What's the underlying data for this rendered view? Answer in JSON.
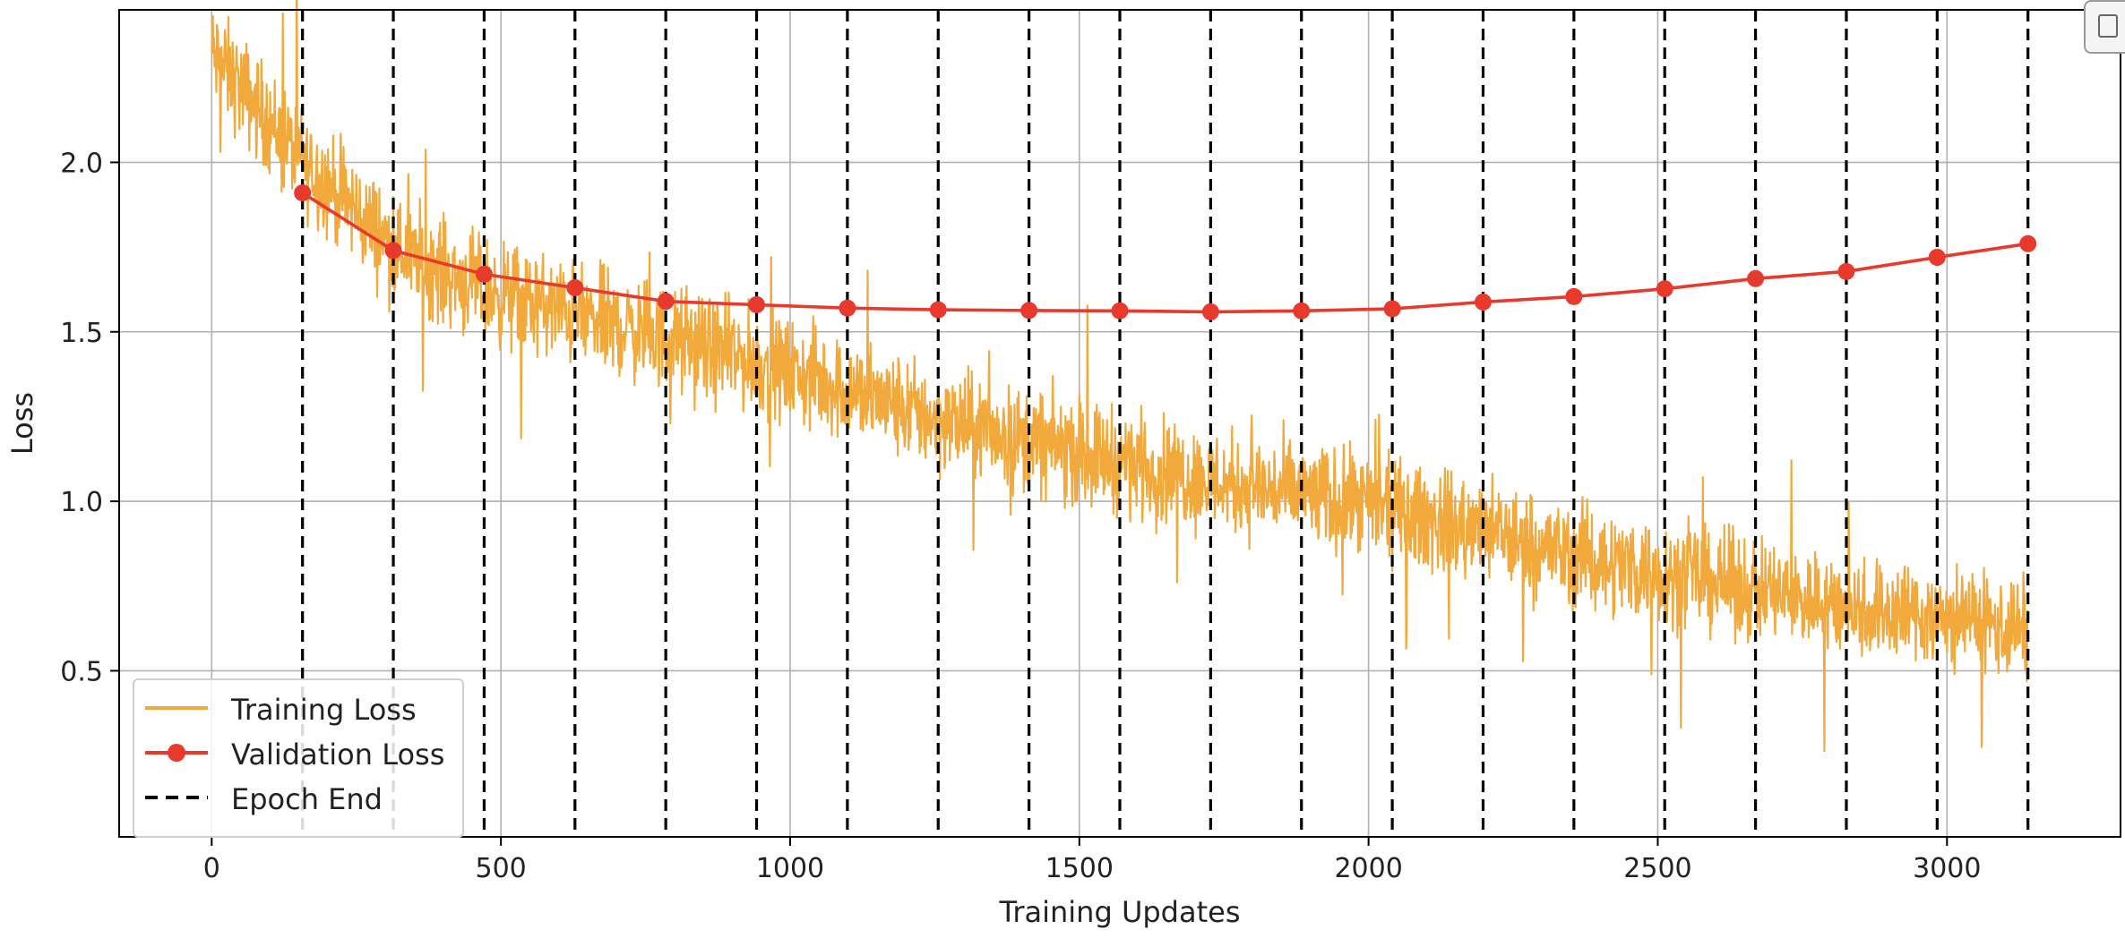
{
  "chart_data": {
    "type": "line",
    "xlabel": "Training Updates",
    "ylabel": "Loss",
    "xlim": [
      -160,
      3300
    ],
    "ylim": [
      0.01,
      2.45
    ],
    "xticks": [
      0,
      500,
      1000,
      1500,
      2000,
      2500,
      3000
    ],
    "yticks": [
      0.5,
      1.0,
      1.5,
      2.0
    ],
    "xtick_labels": [
      "0",
      "500",
      "1000",
      "1500",
      "2000",
      "2500",
      "3000"
    ],
    "ytick_labels": [
      "0.5",
      "1.0",
      "1.5",
      "2.0"
    ],
    "grid": true,
    "legend_position": "lower-left",
    "colors": {
      "training": "#F2A93B",
      "validation": "#E8392D",
      "epoch": "#000000",
      "grid": "#b0b0b0"
    },
    "training_loss": {
      "name": "Training Loss",
      "x_start": 0,
      "x_end": 3140,
      "trend": [
        [
          0,
          2.32
        ],
        [
          160,
          2.0
        ],
        [
          315,
          1.75
        ],
        [
          470,
          1.62
        ],
        [
          630,
          1.55
        ],
        [
          785,
          1.48
        ],
        [
          940,
          1.41
        ],
        [
          1100,
          1.33
        ],
        [
          1255,
          1.24
        ],
        [
          1410,
          1.18
        ],
        [
          1570,
          1.12
        ],
        [
          1725,
          1.06
        ],
        [
          1885,
          1.02
        ],
        [
          2040,
          0.97
        ],
        [
          2195,
          0.91
        ],
        [
          2355,
          0.84
        ],
        [
          2510,
          0.79
        ],
        [
          2670,
          0.74
        ],
        [
          2825,
          0.69
        ],
        [
          2985,
          0.66
        ],
        [
          3140,
          0.62
        ]
      ],
      "noise_amplitude": 0.14
    },
    "validation_loss": {
      "name": "Validation Loss",
      "x": [
        157,
        314,
        471,
        628,
        785,
        942,
        1099,
        1256,
        1413,
        1570,
        1727,
        1884,
        2041,
        2198,
        2355,
        2512,
        2669,
        2826,
        2983,
        3140
      ],
      "y": [
        1.91,
        1.74,
        1.67,
        1.63,
        1.59,
        1.58,
        1.57,
        1.565,
        1.563,
        1.562,
        1.559,
        1.562,
        1.568,
        1.588,
        1.604,
        1.627,
        1.657,
        1.678,
        1.72,
        1.76
      ]
    },
    "epoch_end": {
      "name": "Epoch End",
      "x": [
        157,
        314,
        471,
        628,
        785,
        942,
        1099,
        1256,
        1413,
        1570,
        1727,
        1884,
        2041,
        2198,
        2355,
        2512,
        2669,
        2826,
        2983,
        3140
      ]
    }
  }
}
